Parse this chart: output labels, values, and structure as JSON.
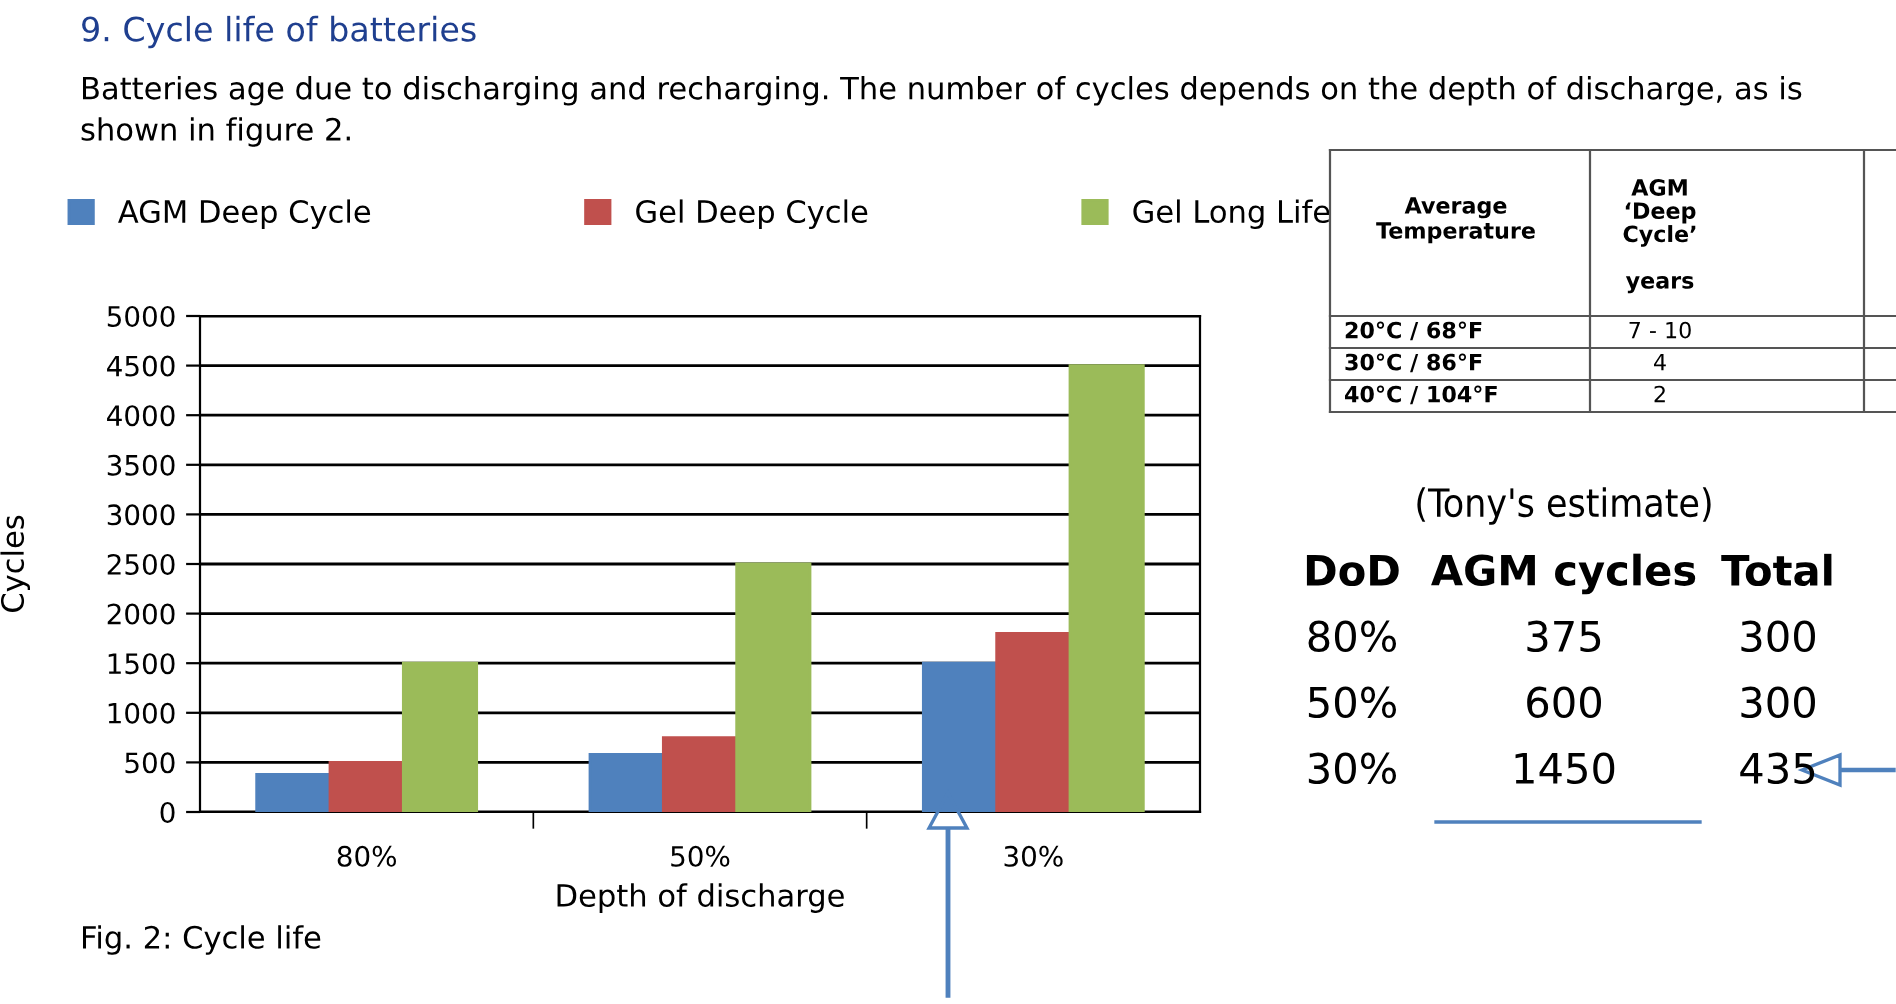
{
  "chart_data": {
    "type": "bar",
    "title": "9. Cycle life of batteries",
    "subtitle": "Batteries age due to discharging and recharging. The number of cycles depends on the depth of discharge, as is shown in figure 2.",
    "xlabel": "Depth of discharge",
    "ylabel": "Cycles",
    "categories": [
      "80%",
      "50%",
      "30%"
    ],
    "series": [
      {
        "name": "AGM Deep Cycle",
        "color": "#4f81bd",
        "values": [
          380,
          580,
          1500
        ]
      },
      {
        "name": "Gel Deep Cycle",
        "color": "#c0504d",
        "values": [
          500,
          750,
          1800
        ]
      },
      {
        "name": "Gel Long Life",
        "color": "#9bbb59",
        "values": [
          1500,
          2500,
          4500
        ]
      }
    ],
    "ylim": [
      0,
      5000
    ],
    "yticks": [
      0,
      500,
      1000,
      1500,
      2000,
      2500,
      3000,
      3500,
      4000,
      4500,
      5000
    ],
    "grid": "y",
    "legend": "top",
    "annotations": [
      "Fig. 2: Cycle life",
      "Average\nTemperature",
      "AGM\n‘Deep\nCycle’\n\nyears",
      "20°C / 68°F",
      "7 - 10",
      "30°C / 86°F",
      "4",
      "40°C / 104°F",
      "2",
      "(Tony's estimate)",
      "DoD",
      "AGM cycles",
      "Total",
      "80%",
      "375",
      "300",
      "50%",
      "600",
      "300",
      "30%",
      "1450",
      "435"
    ]
  }
}
